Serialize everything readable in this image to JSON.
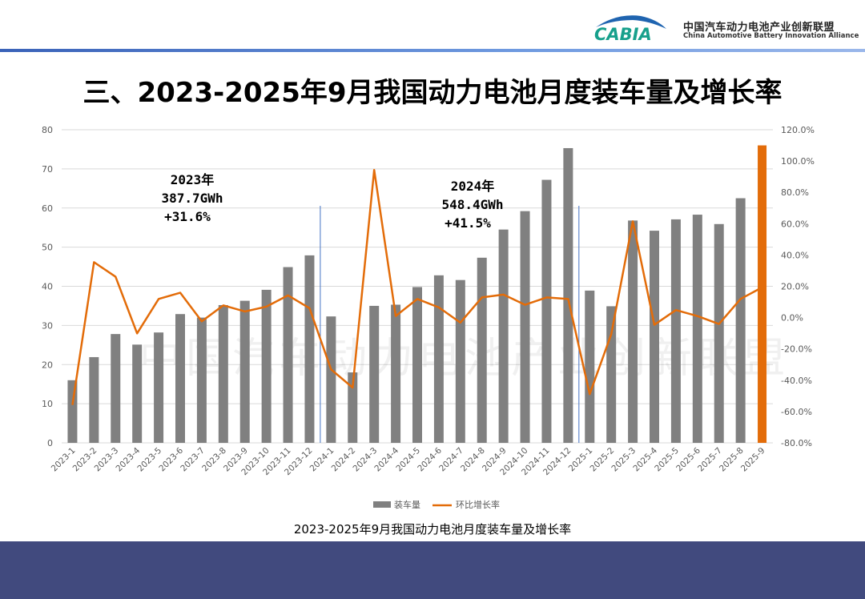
{
  "header": {
    "logo_text": "CABIA",
    "org_name_cn": "中国汽车动力电池产业创新联盟",
    "org_name_en": "China Automotive Battery Innovation Alliance"
  },
  "title": "三、2023-2025年9月我国动力电池月度装车量及增长率",
  "caption": "2023-2025年9月我国动力电池月度装车量及增长率",
  "watermark": "中国汽车动力电池产业创新联盟",
  "colors": {
    "bar": "#808080",
    "highlight_bar": "#e36c09",
    "line": "#e36c09",
    "divider": "#4472c4",
    "band": "#414a7e"
  },
  "chart_data": {
    "type": "bar+line",
    "categories": [
      "2023-1",
      "2023-2",
      "2023-3",
      "2023-4",
      "2023-5",
      "2023-6",
      "2023-7",
      "2023-8",
      "2023-9",
      "2023-10",
      "2023-11",
      "2023-12",
      "2024-1",
      "2024-2",
      "2024-3",
      "2024-4",
      "2024-5",
      "2024-6",
      "2024-7",
      "2024-8",
      "2024-9",
      "2024-10",
      "2024-11",
      "2024-12",
      "2025-1",
      "2025-2",
      "2025-3",
      "2025-4",
      "2025-5",
      "2025-6",
      "2025-7",
      "2025-8",
      "2025-9"
    ],
    "series": [
      {
        "name": "装车量",
        "type": "bar",
        "axis": "left",
        "highlight": "2025-9",
        "values": [
          16.0,
          21.9,
          27.8,
          25.1,
          28.2,
          32.9,
          32.0,
          35.2,
          36.3,
          39.1,
          44.9,
          47.9,
          32.3,
          18.0,
          35.0,
          35.3,
          39.8,
          42.8,
          41.6,
          47.3,
          54.5,
          59.2,
          67.2,
          75.3,
          38.9,
          34.9,
          56.8,
          54.2,
          57.1,
          58.3,
          55.9,
          62.5,
          76.0
        ]
      },
      {
        "name": "环比增长率",
        "type": "line",
        "axis": "right",
        "values": [
          -55.8,
          35.4,
          26.1,
          -10.1,
          11.9,
          15.9,
          -2.4,
          7.8,
          3.9,
          7.0,
          14.2,
          6.0,
          -33.1,
          -44.7,
          94.3,
          1.0,
          11.9,
          6.5,
          -3.2,
          12.9,
          14.7,
          8.2,
          12.9,
          11.9,
          -48.9,
          -10.6,
          61.5,
          -4.6,
          4.8,
          1.0,
          -4.1,
          11.9,
          19.3
        ]
      }
    ],
    "y_left": {
      "range": [
        0,
        80
      ],
      "ticks": [
        "0",
        "10",
        "20",
        "30",
        "40",
        "50",
        "60",
        "70",
        "80"
      ]
    },
    "y_right": {
      "range": [
        -80,
        120
      ],
      "ticks": [
        "-80.0%",
        "-60.0%",
        "-40.0%",
        "-20.0%",
        "0.0%",
        "20.0%",
        "40.0%",
        "60.0%",
        "80.0%",
        "100.0%",
        "120.0%"
      ]
    },
    "grid": true,
    "legend_position": "bottom",
    "annotations": [
      {
        "lines": [
          "2023年",
          "387.7GWh",
          "+31.6%"
        ]
      },
      {
        "lines": [
          "2024年",
          "548.4GWh",
          "+41.5%"
        ]
      }
    ],
    "year_dividers_after": [
      "2023-12",
      "2024-12"
    ]
  }
}
